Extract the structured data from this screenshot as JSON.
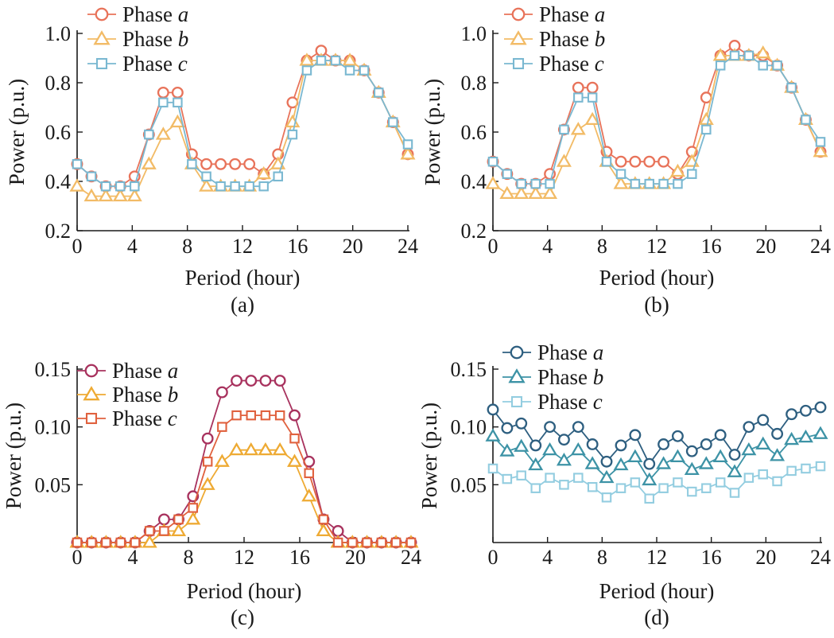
{
  "figure": {
    "caption_labels": [
      "(a)",
      "(b)",
      "(c)",
      "(d)"
    ]
  },
  "chart_data": [
    {
      "type": "line",
      "panel": "(a)",
      "xlabel": "Period (hour)",
      "ylabel": "Power (p.u.)",
      "xlim": [
        0,
        24
      ],
      "ylim": [
        0.2,
        1.0
      ],
      "xticks": [
        "0",
        "4",
        "8",
        "12",
        "16",
        "20",
        "24"
      ],
      "yticks": [
        "0.2",
        "0.4",
        "0.6",
        "0.8",
        "1.0"
      ],
      "legend_position": "top-left",
      "x": [
        0,
        1.04,
        2.08,
        3.13,
        4.17,
        5.21,
        6.25,
        7.29,
        8.33,
        9.38,
        10.42,
        11.46,
        12.5,
        13.54,
        14.58,
        15.63,
        16.67,
        17.71,
        18.75,
        19.79,
        20.83,
        21.88,
        22.92,
        24
      ],
      "series": [
        {
          "name": "Phase a",
          "legend_prefix": "Phase ",
          "legend_italic": "a",
          "marker": "circle",
          "color": "#e8735a",
          "values": [
            0.47,
            0.42,
            0.38,
            0.38,
            0.42,
            0.59,
            0.76,
            0.76,
            0.51,
            0.47,
            0.47,
            0.47,
            0.47,
            0.43,
            0.51,
            0.72,
            0.89,
            0.93,
            0.89,
            0.89,
            0.85,
            0.76,
            0.64,
            0.51
          ]
        },
        {
          "name": "Phase b",
          "legend_prefix": "Phase ",
          "legend_italic": "b",
          "marker": "triangle",
          "color": "#f2bb66",
          "values": [
            0.38,
            0.34,
            0.34,
            0.34,
            0.34,
            0.47,
            0.59,
            0.64,
            0.47,
            0.38,
            0.38,
            0.38,
            0.38,
            0.43,
            0.47,
            0.64,
            0.89,
            0.89,
            0.89,
            0.89,
            0.85,
            0.76,
            0.64,
            0.51
          ]
        },
        {
          "name": "Phase c",
          "legend_prefix": "Phase ",
          "legend_italic": "c",
          "marker": "square",
          "color": "#7ab8d1",
          "values": [
            0.47,
            0.42,
            0.38,
            0.38,
            0.38,
            0.59,
            0.72,
            0.72,
            0.47,
            0.42,
            0.38,
            0.38,
            0.38,
            0.38,
            0.42,
            0.59,
            0.85,
            0.89,
            0.89,
            0.85,
            0.85,
            0.76,
            0.64,
            0.55
          ]
        }
      ]
    },
    {
      "type": "line",
      "panel": "(b)",
      "xlabel": "Period (hour)",
      "ylabel": "Power (p.u.)",
      "xlim": [
        0,
        24
      ],
      "ylim": [
        0.2,
        1.0
      ],
      "xticks": [
        "0",
        "4",
        "8",
        "12",
        "16",
        "20",
        "24"
      ],
      "yticks": [
        "0.2",
        "0.4",
        "0.6",
        "0.8",
        "1.0"
      ],
      "legend_position": "top-left",
      "x": [
        0,
        1.04,
        2.08,
        3.13,
        4.17,
        5.21,
        6.25,
        7.29,
        8.33,
        9.38,
        10.42,
        11.46,
        12.5,
        13.54,
        14.58,
        15.63,
        16.67,
        17.71,
        18.75,
        19.79,
        20.83,
        21.88,
        22.92,
        24
      ],
      "series": [
        {
          "name": "Phase a",
          "legend_prefix": "Phase ",
          "legend_italic": "a",
          "marker": "circle",
          "color": "#e8735a",
          "values": [
            0.48,
            0.43,
            0.39,
            0.39,
            0.43,
            0.61,
            0.78,
            0.78,
            0.52,
            0.48,
            0.48,
            0.48,
            0.48,
            0.43,
            0.52,
            0.74,
            0.91,
            0.95,
            0.91,
            0.91,
            0.87,
            0.78,
            0.65,
            0.52
          ]
        },
        {
          "name": "Phase b",
          "legend_prefix": "Phase ",
          "legend_italic": "b",
          "marker": "triangle",
          "color": "#f2bb66",
          "values": [
            0.39,
            0.35,
            0.35,
            0.35,
            0.35,
            0.48,
            0.61,
            0.65,
            0.48,
            0.39,
            0.39,
            0.39,
            0.39,
            0.44,
            0.48,
            0.65,
            0.91,
            0.91,
            0.91,
            0.92,
            0.87,
            0.78,
            0.65,
            0.52
          ]
        },
        {
          "name": "Phase c",
          "legend_prefix": "Phase ",
          "legend_italic": "c",
          "marker": "square",
          "color": "#7ab8d1",
          "values": [
            0.48,
            0.43,
            0.39,
            0.39,
            0.39,
            0.61,
            0.74,
            0.74,
            0.48,
            0.43,
            0.39,
            0.39,
            0.39,
            0.39,
            0.43,
            0.61,
            0.87,
            0.91,
            0.91,
            0.87,
            0.87,
            0.78,
            0.65,
            0.56
          ]
        }
      ]
    },
    {
      "type": "line",
      "panel": "(c)",
      "xlabel": "Period (hour)",
      "ylabel": "Power (p.u.)",
      "xlim": [
        0,
        24
      ],
      "ylim": [
        0,
        0.15
      ],
      "xticks": [
        "0",
        "4",
        "8",
        "12",
        "16",
        "20",
        "24"
      ],
      "yticks": [
        "0.05",
        "0.10",
        "0.15"
      ],
      "legend_position": "top-left",
      "x": [
        0,
        1.04,
        2.08,
        3.13,
        4.17,
        5.21,
        6.25,
        7.29,
        8.33,
        9.38,
        10.42,
        11.46,
        12.5,
        13.54,
        14.58,
        15.63,
        16.67,
        17.71,
        18.75,
        19.79,
        20.83,
        21.88,
        22.92,
        24
      ],
      "series": [
        {
          "name": "Phase a",
          "legend_prefix": "Phase ",
          "legend_italic": "a",
          "marker": "circle",
          "color": "#a8325e",
          "values": [
            0,
            0,
            0,
            0,
            0,
            0.01,
            0.02,
            0.02,
            0.04,
            0.09,
            0.13,
            0.14,
            0.14,
            0.14,
            0.14,
            0.11,
            0.07,
            0.02,
            0.01,
            0,
            0,
            0,
            0,
            0
          ]
        },
        {
          "name": "Phase b",
          "legend_prefix": "Phase ",
          "legend_italic": "b",
          "marker": "triangle",
          "color": "#eeaa33",
          "values": [
            0,
            0,
            0,
            0,
            0,
            0,
            0.01,
            0.01,
            0.02,
            0.05,
            0.07,
            0.08,
            0.08,
            0.08,
            0.08,
            0.07,
            0.04,
            0.01,
            0,
            0,
            0,
            0,
            0,
            0
          ]
        },
        {
          "name": "Phase c",
          "legend_prefix": "Phase ",
          "legend_italic": "c",
          "marker": "square",
          "color": "#e0613e",
          "values": [
            0,
            0,
            0,
            0,
            0,
            0.01,
            0.01,
            0.02,
            0.03,
            0.07,
            0.1,
            0.11,
            0.11,
            0.11,
            0.11,
            0.09,
            0.06,
            0.02,
            0,
            0,
            0,
            0,
            0,
            0
          ]
        }
      ]
    },
    {
      "type": "line",
      "panel": "(d)",
      "xlabel": "Period (hour)",
      "ylabel": "Power (p.u.)",
      "xlim": [
        0,
        24
      ],
      "ylim": [
        0,
        0.15
      ],
      "xticks": [
        "0",
        "4",
        "8",
        "12",
        "16",
        "20",
        "24"
      ],
      "yticks": [
        "0.05",
        "0.10",
        "0.15"
      ],
      "legend_position": "top-left",
      "x": [
        0,
        1.04,
        2.08,
        3.13,
        4.17,
        5.21,
        6.25,
        7.29,
        8.33,
        9.38,
        10.42,
        11.46,
        12.5,
        13.54,
        14.58,
        15.63,
        16.67,
        17.71,
        18.75,
        19.79,
        20.83,
        21.88,
        22.92,
        24
      ],
      "series": [
        {
          "name": "Phase a",
          "legend_prefix": "Phase ",
          "legend_italic": "a",
          "marker": "circle",
          "color": "#2e5f80",
          "values": [
            0.115,
            0.099,
            0.103,
            0.084,
            0.1,
            0.089,
            0.1,
            0.085,
            0.07,
            0.084,
            0.093,
            0.068,
            0.085,
            0.092,
            0.079,
            0.085,
            0.093,
            0.076,
            0.1,
            0.106,
            0.094,
            0.111,
            0.114,
            0.117
          ]
        },
        {
          "name": "Phase b",
          "legend_prefix": "Phase ",
          "legend_italic": "b",
          "marker": "triangle",
          "color": "#3d93a6",
          "values": [
            0.092,
            0.079,
            0.083,
            0.067,
            0.08,
            0.071,
            0.08,
            0.068,
            0.056,
            0.067,
            0.074,
            0.054,
            0.068,
            0.074,
            0.063,
            0.068,
            0.074,
            0.061,
            0.08,
            0.085,
            0.075,
            0.089,
            0.091,
            0.094
          ]
        },
        {
          "name": "Phase c",
          "legend_prefix": "Phase ",
          "legend_italic": "c",
          "marker": "square",
          "color": "#93cde0",
          "values": [
            0.064,
            0.055,
            0.058,
            0.047,
            0.056,
            0.05,
            0.056,
            0.048,
            0.039,
            0.047,
            0.052,
            0.038,
            0.047,
            0.052,
            0.044,
            0.047,
            0.052,
            0.043,
            0.056,
            0.059,
            0.053,
            0.062,
            0.064,
            0.066
          ]
        }
      ]
    }
  ]
}
